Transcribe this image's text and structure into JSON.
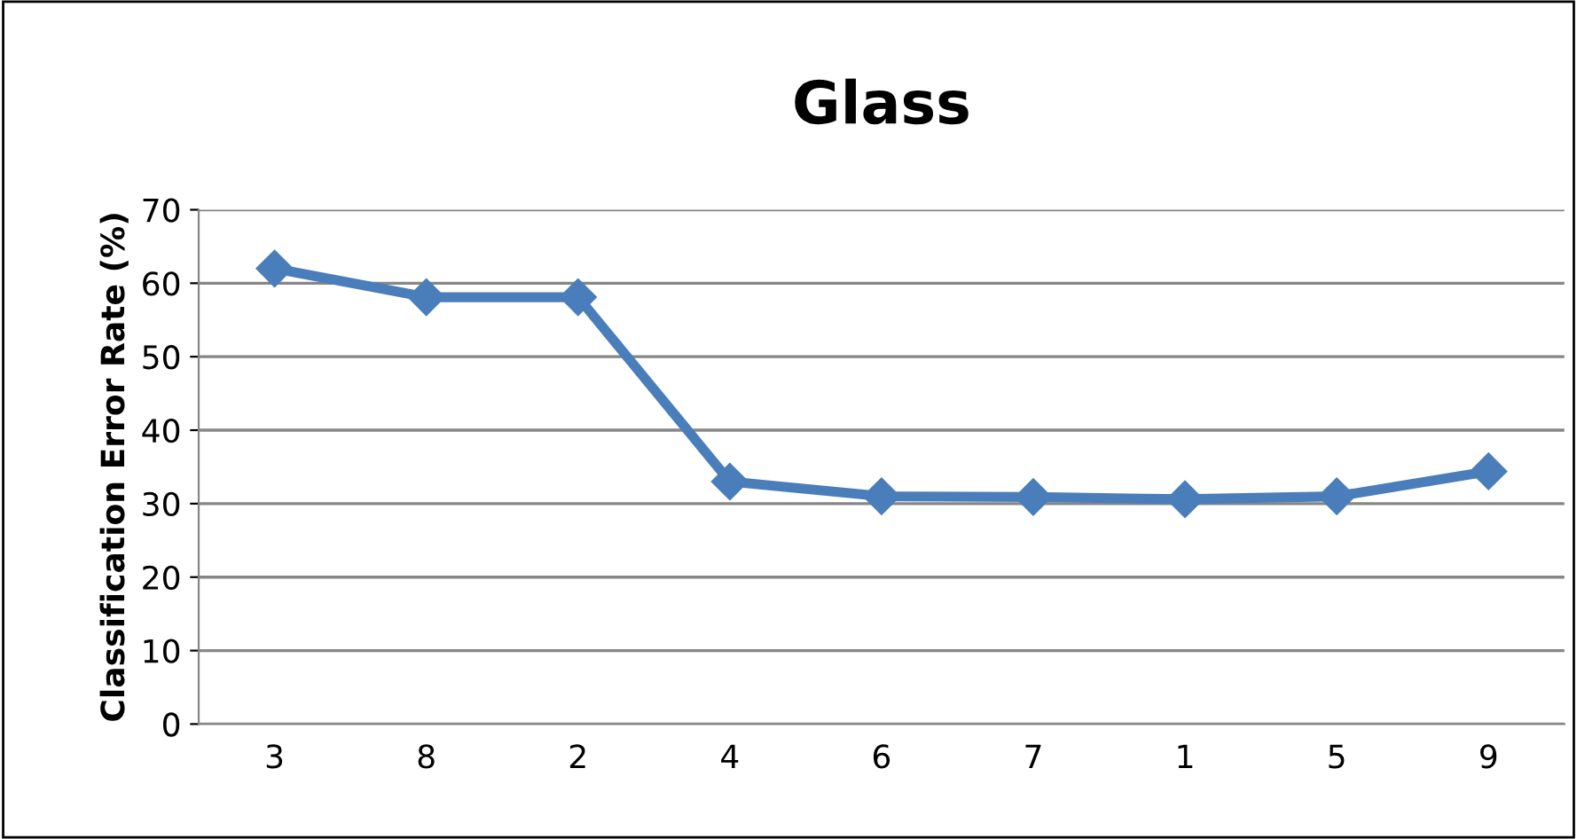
{
  "chart_data": {
    "type": "line",
    "title": "Glass",
    "ylabel": "Classification Error Rate (%)",
    "categories": [
      "3",
      "8",
      "2",
      "4",
      "6",
      "7",
      "1",
      "5",
      "9"
    ],
    "series": [
      {
        "color": "#4a7ebb",
        "values": [
          62.0,
          58.1,
          58.1,
          33.0,
          31.0,
          30.9,
          30.6,
          31.0,
          34.4
        ]
      }
    ],
    "ylim": [
      0,
      70
    ],
    "yticks": [
      0,
      10,
      20,
      30,
      40,
      50,
      60,
      70
    ],
    "grid": "y",
    "marker": "diamond",
    "line_style": "solid",
    "legend": false
  }
}
